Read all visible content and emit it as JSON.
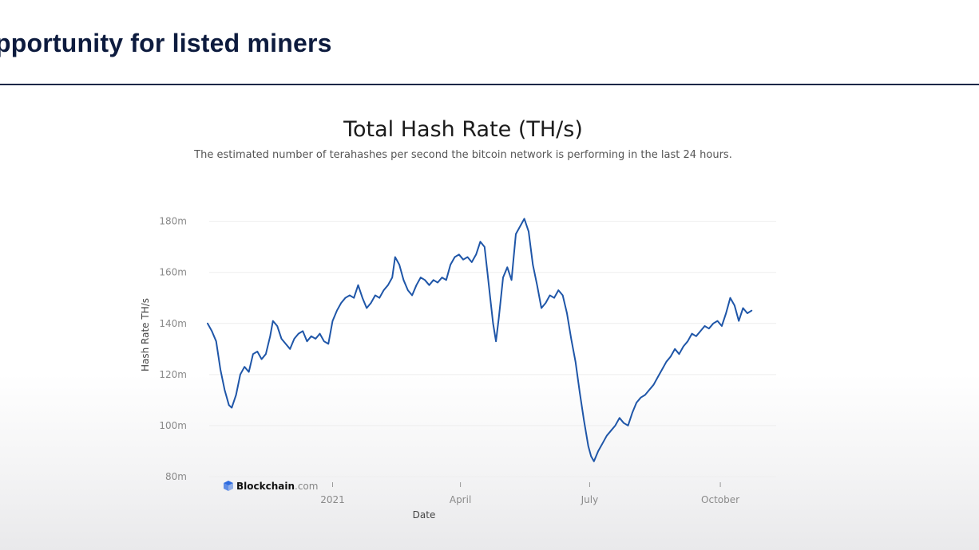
{
  "slide": {
    "title": "pportunity for listed miners"
  },
  "brand": {
    "icon": "blockchain-cube-icon",
    "name": "Blockchain",
    "suffix": ".com",
    "color": "#2d6be0"
  },
  "colors": {
    "line": "#1f56a8",
    "grid": "#eeeeee",
    "rule": "#1c2748"
  },
  "chart_data": {
    "type": "line",
    "title": "Total Hash Rate (TH/s)",
    "subtitle": "The estimated number of terahashes per second the bitcoin network is performing in the last 24 hours.",
    "xlabel": "Date",
    "ylabel": "Hash Rate TH/s",
    "ylim": [
      80,
      183
    ],
    "xlim": [
      "2020-10-05",
      "2021-11-11"
    ],
    "grid": true,
    "legend": "none",
    "y_ticks": [
      {
        "value": 80,
        "label": "80m"
      },
      {
        "value": 100,
        "label": "100m"
      },
      {
        "value": 120,
        "label": "120m"
      },
      {
        "value": 140,
        "label": "140m"
      },
      {
        "value": 160,
        "label": "160m"
      },
      {
        "value": 180,
        "label": "180m"
      }
    ],
    "x_ticks": [
      {
        "date": "2021-01-01",
        "label": "2021"
      },
      {
        "date": "2021-04-01",
        "label": "April"
      },
      {
        "date": "2021-07-01",
        "label": "July"
      },
      {
        "date": "2021-10-01",
        "label": "October"
      }
    ],
    "series": [
      {
        "points": [
          [
            "2020-10-05",
            140
          ],
          [
            "2020-10-08",
            137
          ],
          [
            "2020-10-11",
            133
          ],
          [
            "2020-10-14",
            122
          ],
          [
            "2020-10-17",
            114
          ],
          [
            "2020-10-20",
            108
          ],
          [
            "2020-10-22",
            107
          ],
          [
            "2020-10-25",
            112
          ],
          [
            "2020-10-28",
            120
          ],
          [
            "2020-10-31",
            123
          ],
          [
            "2020-11-03",
            121
          ],
          [
            "2020-11-06",
            128
          ],
          [
            "2020-11-09",
            129
          ],
          [
            "2020-11-12",
            126
          ],
          [
            "2020-11-15",
            128
          ],
          [
            "2020-11-18",
            135
          ],
          [
            "2020-11-20",
            141
          ],
          [
            "2020-11-23",
            139
          ],
          [
            "2020-11-26",
            134
          ],
          [
            "2020-11-29",
            132
          ],
          [
            "2020-12-02",
            130
          ],
          [
            "2020-12-05",
            134
          ],
          [
            "2020-12-08",
            136
          ],
          [
            "2020-12-11",
            137
          ],
          [
            "2020-12-14",
            133
          ],
          [
            "2020-12-17",
            135
          ],
          [
            "2020-12-20",
            134
          ],
          [
            "2020-12-23",
            136
          ],
          [
            "2020-12-26",
            133
          ],
          [
            "2020-12-29",
            132
          ],
          [
            "2021-01-01",
            141
          ],
          [
            "2021-01-04",
            145
          ],
          [
            "2021-01-07",
            148
          ],
          [
            "2021-01-10",
            150
          ],
          [
            "2021-01-13",
            151
          ],
          [
            "2021-01-16",
            150
          ],
          [
            "2021-01-19",
            155
          ],
          [
            "2021-01-22",
            150
          ],
          [
            "2021-01-25",
            146
          ],
          [
            "2021-01-28",
            148
          ],
          [
            "2021-01-31",
            151
          ],
          [
            "2021-02-03",
            150
          ],
          [
            "2021-02-06",
            153
          ],
          [
            "2021-02-09",
            155
          ],
          [
            "2021-02-12",
            158
          ],
          [
            "2021-02-14",
            166
          ],
          [
            "2021-02-17",
            163
          ],
          [
            "2021-02-20",
            157
          ],
          [
            "2021-02-23",
            153
          ],
          [
            "2021-02-26",
            151
          ],
          [
            "2021-03-01",
            155
          ],
          [
            "2021-03-04",
            158
          ],
          [
            "2021-03-07",
            157
          ],
          [
            "2021-03-10",
            155
          ],
          [
            "2021-03-13",
            157
          ],
          [
            "2021-03-16",
            156
          ],
          [
            "2021-03-19",
            158
          ],
          [
            "2021-03-22",
            157
          ],
          [
            "2021-03-25",
            163
          ],
          [
            "2021-03-28",
            166
          ],
          [
            "2021-03-31",
            167
          ],
          [
            "2021-04-03",
            165
          ],
          [
            "2021-04-06",
            166
          ],
          [
            "2021-04-09",
            164
          ],
          [
            "2021-04-12",
            167
          ],
          [
            "2021-04-15",
            172
          ],
          [
            "2021-04-18",
            170
          ],
          [
            "2021-04-20",
            160
          ],
          [
            "2021-04-22",
            150
          ],
          [
            "2021-04-24",
            140
          ],
          [
            "2021-04-26",
            133
          ],
          [
            "2021-04-28",
            142
          ],
          [
            "2021-05-01",
            158
          ],
          [
            "2021-05-04",
            162
          ],
          [
            "2021-05-07",
            157
          ],
          [
            "2021-05-10",
            175
          ],
          [
            "2021-05-13",
            178
          ],
          [
            "2021-05-16",
            181
          ],
          [
            "2021-05-19",
            176
          ],
          [
            "2021-05-22",
            163
          ],
          [
            "2021-05-25",
            155
          ],
          [
            "2021-05-28",
            146
          ],
          [
            "2021-05-31",
            148
          ],
          [
            "2021-06-03",
            151
          ],
          [
            "2021-06-06",
            150
          ],
          [
            "2021-06-09",
            153
          ],
          [
            "2021-06-12",
            151
          ],
          [
            "2021-06-15",
            144
          ],
          [
            "2021-06-18",
            134
          ],
          [
            "2021-06-21",
            125
          ],
          [
            "2021-06-24",
            113
          ],
          [
            "2021-06-27",
            102
          ],
          [
            "2021-06-30",
            92
          ],
          [
            "2021-07-02",
            88
          ],
          [
            "2021-07-04",
            86
          ],
          [
            "2021-07-07",
            90
          ],
          [
            "2021-07-10",
            93
          ],
          [
            "2021-07-13",
            96
          ],
          [
            "2021-07-16",
            98
          ],
          [
            "2021-07-19",
            100
          ],
          [
            "2021-07-22",
            103
          ],
          [
            "2021-07-25",
            101
          ],
          [
            "2021-07-28",
            100
          ],
          [
            "2021-07-31",
            105
          ],
          [
            "2021-08-03",
            109
          ],
          [
            "2021-08-06",
            111
          ],
          [
            "2021-08-09",
            112
          ],
          [
            "2021-08-12",
            114
          ],
          [
            "2021-08-15",
            116
          ],
          [
            "2021-08-18",
            119
          ],
          [
            "2021-08-21",
            122
          ],
          [
            "2021-08-24",
            125
          ],
          [
            "2021-08-27",
            127
          ],
          [
            "2021-08-30",
            130
          ],
          [
            "2021-09-02",
            128
          ],
          [
            "2021-09-05",
            131
          ],
          [
            "2021-09-08",
            133
          ],
          [
            "2021-09-11",
            136
          ],
          [
            "2021-09-14",
            135
          ],
          [
            "2021-09-17",
            137
          ],
          [
            "2021-09-20",
            139
          ],
          [
            "2021-09-23",
            138
          ],
          [
            "2021-09-26",
            140
          ],
          [
            "2021-09-29",
            141
          ],
          [
            "2021-10-02",
            139
          ],
          [
            "2021-10-05",
            144
          ],
          [
            "2021-10-08",
            150
          ],
          [
            "2021-10-11",
            147
          ],
          [
            "2021-10-14",
            141
          ],
          [
            "2021-10-17",
            146
          ],
          [
            "2021-10-20",
            144
          ],
          [
            "2021-10-23",
            145
          ]
        ]
      }
    ]
  }
}
